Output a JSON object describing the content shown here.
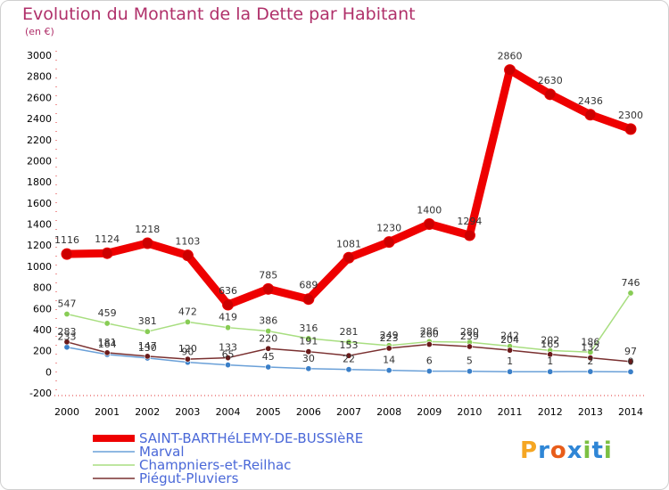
{
  "title": "Evolution du Montant de la Dette par Habitant",
  "unit_label": "(en €)",
  "logo": {
    "text": "Proxiti",
    "colors": [
      "#f5a623",
      "#2f86d6",
      "#e85d1a",
      "#2f86d6",
      "#7bc043",
      "#2f86d6",
      "#7bc043"
    ]
  },
  "chart_data": {
    "type": "line",
    "x": [
      2000,
      2001,
      2002,
      2003,
      2004,
      2005,
      2006,
      2007,
      2008,
      2009,
      2010,
      2011,
      2012,
      2013,
      2014
    ],
    "y_ticks": [
      -200,
      0,
      200,
      400,
      600,
      800,
      1000,
      1200,
      1400,
      1600,
      1800,
      2000,
      2200,
      2400,
      2600,
      2800,
      3000
    ],
    "ylim": [
      -200,
      3000
    ],
    "grid": false,
    "legend_position": "bottom-left",
    "series": [
      {
        "name": "SAINT-BARTHéLEMY-DE-BUSSIèRE",
        "color": "#ee0000",
        "marker": "#cc0000",
        "values": [
          1116,
          1124,
          1218,
          1103,
          636,
          785,
          689,
          1081,
          1230,
          1400,
          1294,
          2860,
          2630,
          2436,
          2300
        ],
        "labels": [
          "1116",
          "1124",
          "1218",
          "1103",
          "636",
          "785",
          "689",
          "1081",
          "1230",
          "1400",
          "1294",
          "2860",
          "2630",
          "2436",
          "2300"
        ]
      },
      {
        "name": "Marval",
        "color": "#6aa0d8",
        "marker": "#3a7fc8",
        "values": [
          233,
          164,
          130,
          90,
          65,
          45,
          30,
          22,
          14,
          6,
          5,
          1,
          1,
          2,
          0
        ],
        "labels": [
          "233",
          "164",
          "130",
          "90",
          "65",
          "45",
          "30",
          "22",
          "14",
          "6",
          "5",
          "1",
          "1",
          "2",
          "0"
        ]
      },
      {
        "name": "Champniers-et-Reilhac",
        "color": "#a8de80",
        "marker": "#88cc55",
        "values": [
          547,
          459,
          381,
          472,
          419,
          386,
          316,
          281,
          249,
          286,
          280,
          242,
          202,
          186,
          746
        ],
        "labels": [
          "547",
          "459",
          "381",
          "472",
          "419",
          "386",
          "316",
          "281",
          "249",
          "286",
          "280",
          "242",
          "202",
          "186",
          "746"
        ]
      },
      {
        "name": "Piégut-Pluviers",
        "color": "#7a3030",
        "marker": "#6a1a1a",
        "values": [
          283,
          181,
          147,
          120,
          133,
          220,
          191,
          153,
          223,
          260,
          239,
          204,
          165,
          132,
          97
        ],
        "labels": [
          "283",
          "181",
          "147",
          "120",
          "133",
          "220",
          "191",
          "153",
          "223",
          "260",
          "239",
          "204",
          "165",
          "132",
          "97"
        ]
      }
    ]
  }
}
